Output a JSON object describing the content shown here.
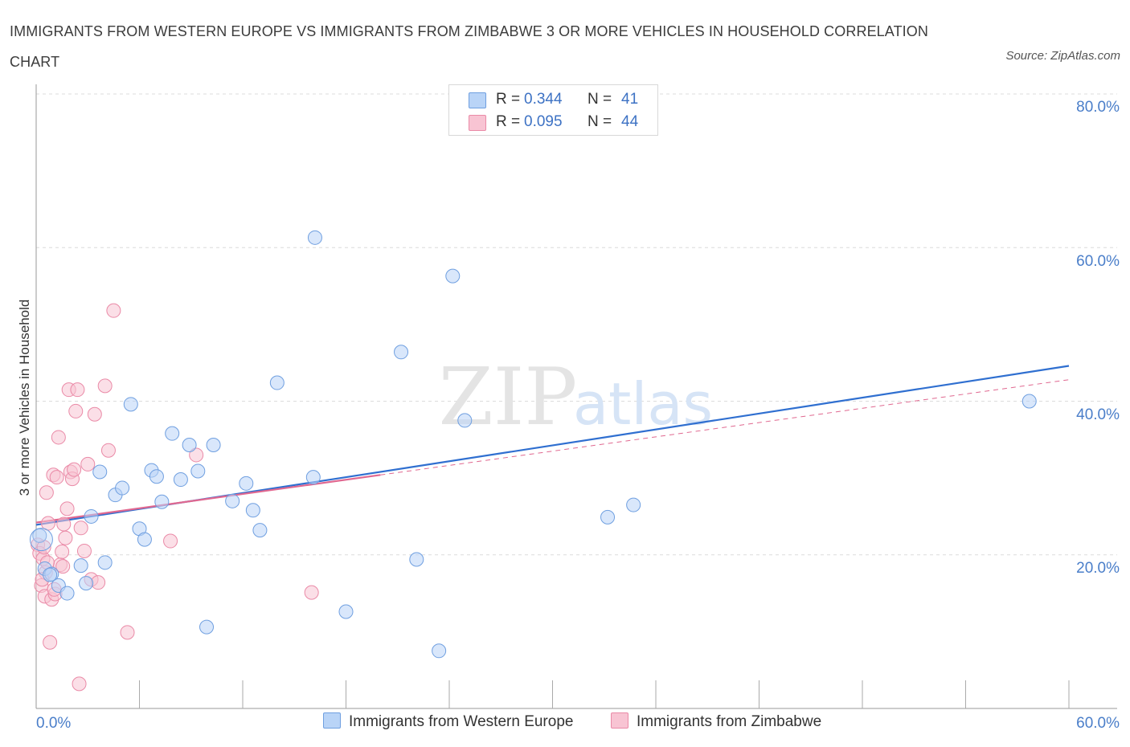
{
  "header": {
    "title": "IMMIGRANTS FROM WESTERN EUROPE VS IMMIGRANTS FROM ZIMBABWE 3 OR MORE VEHICLES IN HOUSEHOLD CORRELATION CHART",
    "source": "Source: ZipAtlas.com"
  },
  "watermark": {
    "zip": "ZIP",
    "atlas": "atlas"
  },
  "legend": {
    "western_europe": {
      "r_label": "R =",
      "r_value": "0.344",
      "n_label": "N =",
      "n_value": "41"
    },
    "zimbabwe": {
      "r_label": "R =",
      "r_value": "0.095",
      "n_label": "N =",
      "n_value": "44"
    }
  },
  "bottom_legend": {
    "western_europe": "Immigrants from Western Europe",
    "zimbabwe": "Immigrants from Zimbabwe"
  },
  "colors": {
    "blue_fill": "#b9d4f7",
    "blue_stroke": "#6f9fe0",
    "blue_line": "#2f6fd0",
    "pink_fill": "#f8c4d3",
    "pink_stroke": "#ea8aa7",
    "pink_line": "#e06890",
    "grid": "#dcdcdc",
    "tick_text": "#4a7ec9"
  },
  "chart_data": {
    "type": "scatter",
    "title": "IMMIGRANTS FROM WESTERN EUROPE VS IMMIGRANTS FROM ZIMBABWE 3 OR MORE VEHICLES IN HOUSEHOLD CORRELATION CHART",
    "xlabel": "",
    "ylabel": "3 or more Vehicles in Household",
    "xlim": [
      0,
      60
    ],
    "ylim": [
      0,
      80
    ],
    "x_tick_labels": [
      "0.0%",
      "60.0%"
    ],
    "y_ticks": [
      20,
      40,
      60,
      80
    ],
    "y_tick_labels": [
      "20.0%",
      "40.0%",
      "60.0%",
      "80.0%"
    ],
    "grid": true,
    "legend_position": "top-center",
    "series": [
      {
        "name": "Immigrants from Western Europe",
        "R": 0.344,
        "N": 41,
        "trend": {
          "x": [
            0,
            60
          ],
          "y": [
            23.9,
            44.6
          ]
        },
        "points": [
          [
            0.2,
            22.5
          ],
          [
            0.5,
            18.2
          ],
          [
            0.9,
            17.5
          ],
          [
            1.3,
            16.0
          ],
          [
            1.8,
            15.0
          ],
          [
            2.6,
            18.6
          ],
          [
            2.9,
            16.3
          ],
          [
            3.2,
            25.0
          ],
          [
            3.7,
            30.8
          ],
          [
            4.0,
            19.0
          ],
          [
            4.6,
            27.8
          ],
          [
            5.0,
            28.7
          ],
          [
            5.5,
            39.6
          ],
          [
            6.0,
            23.4
          ],
          [
            6.3,
            22.0
          ],
          [
            6.7,
            31.0
          ],
          [
            7.0,
            30.2
          ],
          [
            7.3,
            26.9
          ],
          [
            7.9,
            35.8
          ],
          [
            8.4,
            29.8
          ],
          [
            8.9,
            34.3
          ],
          [
            9.4,
            30.9
          ],
          [
            9.9,
            10.6
          ],
          [
            10.3,
            34.3
          ],
          [
            11.4,
            27.0
          ],
          [
            12.2,
            29.3
          ],
          [
            12.6,
            25.8
          ],
          [
            13.0,
            23.2
          ],
          [
            14.0,
            42.4
          ],
          [
            16.1,
            30.1
          ],
          [
            16.2,
            61.3
          ],
          [
            18.0,
            12.6
          ],
          [
            21.2,
            46.4
          ],
          [
            22.1,
            19.4
          ],
          [
            23.4,
            7.5
          ],
          [
            24.2,
            56.3
          ],
          [
            24.9,
            37.5
          ],
          [
            33.2,
            24.9
          ],
          [
            34.7,
            26.5
          ],
          [
            57.7,
            40.0
          ],
          [
            0.8,
            17.4
          ]
        ]
      },
      {
        "name": "Immigrants from Zimbabwe",
        "R": 0.095,
        "N": 44,
        "trend": {
          "x": [
            0,
            60
          ],
          "y": [
            24.2,
            42.8
          ]
        },
        "trend_solid_until_x": 20,
        "points": [
          [
            0.1,
            21.3
          ],
          [
            0.2,
            20.2
          ],
          [
            0.3,
            16.0
          ],
          [
            0.4,
            19.5
          ],
          [
            0.5,
            14.6
          ],
          [
            0.6,
            28.1
          ],
          [
            0.7,
            24.1
          ],
          [
            0.8,
            8.6
          ],
          [
            0.9,
            14.2
          ],
          [
            1.0,
            30.4
          ],
          [
            1.1,
            14.9
          ],
          [
            1.2,
            30.1
          ],
          [
            1.3,
            35.3
          ],
          [
            1.4,
            18.7
          ],
          [
            1.5,
            20.4
          ],
          [
            1.6,
            24.0
          ],
          [
            1.7,
            22.2
          ],
          [
            1.8,
            26.0
          ],
          [
            1.9,
            41.5
          ],
          [
            2.0,
            30.8
          ],
          [
            2.1,
            29.9
          ],
          [
            2.2,
            31.1
          ],
          [
            2.3,
            38.7
          ],
          [
            2.4,
            41.5
          ],
          [
            2.5,
            3.2
          ],
          [
            2.6,
            23.5
          ],
          [
            2.8,
            20.5
          ],
          [
            3.0,
            31.8
          ],
          [
            3.2,
            16.8
          ],
          [
            3.4,
            38.3
          ],
          [
            3.6,
            16.4
          ],
          [
            4.0,
            42.0
          ],
          [
            4.2,
            33.6
          ],
          [
            4.5,
            51.8
          ],
          [
            5.3,
            9.9
          ],
          [
            7.8,
            21.8
          ],
          [
            9.3,
            33.0
          ],
          [
            16.0,
            15.1
          ],
          [
            0.55,
            17.7
          ],
          [
            0.65,
            19.0
          ],
          [
            1.05,
            15.5
          ],
          [
            0.35,
            16.8
          ],
          [
            0.45,
            21.0
          ],
          [
            1.55,
            18.5
          ]
        ]
      }
    ]
  }
}
